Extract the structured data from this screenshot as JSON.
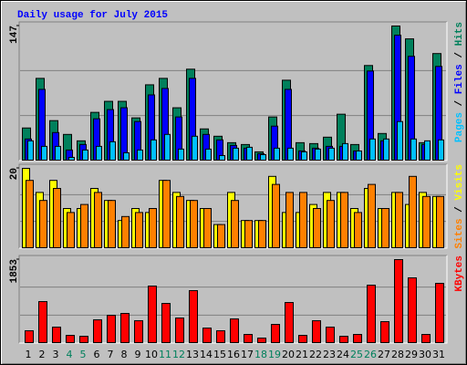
{
  "chart_data": [
    {
      "type": "bar",
      "title": "Daily usage for July 2015",
      "ylim": [
        0,
        147
      ],
      "yticks": [
        147
      ],
      "separator": "/",
      "series": [
        {
          "name": "Hits",
          "color": "#00805c",
          "values": [
            36,
            90,
            44,
            29,
            22,
            53,
            65,
            65,
            47,
            83,
            90,
            58,
            100,
            35,
            27,
            20,
            18,
            10,
            48,
            88,
            20,
            19,
            26,
            51,
            18,
            104,
            30,
            147,
            133,
            20,
            117
          ]
        },
        {
          "name": "Files",
          "color": "#0000ff",
          "values": [
            24,
            78,
            31,
            12,
            18,
            46,
            56,
            58,
            43,
            72,
            79,
            48,
            90,
            29,
            23,
            17,
            14,
            8,
            38,
            78,
            11,
            14,
            16,
            16,
            11,
            98,
            22,
            137,
            114,
            18,
            103
          ]
        },
        {
          "name": "Pages",
          "color": "#00c0ff",
          "values": [
            22,
            16,
            16,
            4,
            12,
            16,
            21,
            9,
            12,
            23,
            29,
            13,
            27,
            13,
            6,
            14,
            15,
            7,
            14,
            14,
            10,
            13,
            14,
            19,
            11,
            24,
            24,
            43,
            24,
            22,
            23
          ]
        }
      ]
    },
    {
      "type": "bar",
      "ylim": [
        0,
        20
      ],
      "yticks": [
        20
      ],
      "separator": "/",
      "series": [
        {
          "name": "Visits",
          "color": "#ffff00",
          "values": [
            20,
            14,
            17,
            10,
            10,
            15,
            12,
            7,
            10,
            9,
            17,
            14,
            12,
            10,
            6,
            14,
            7,
            7,
            18,
            9,
            9,
            11,
            14,
            14,
            10,
            15,
            10,
            14,
            11,
            14,
            13
          ]
        },
        {
          "name": "Sites",
          "color": "#ff8000",
          "values": [
            17,
            12,
            15,
            9,
            11,
            14,
            12,
            8,
            9,
            10,
            17,
            13,
            12,
            10,
            6,
            12,
            7,
            7,
            16,
            14,
            14,
            10,
            12,
            14,
            9,
            16,
            10,
            14,
            18,
            13,
            13
          ]
        }
      ]
    },
    {
      "type": "bar",
      "ylim": [
        0,
        1853
      ],
      "yticks": [
        1853
      ],
      "categories": [
        "1",
        "2",
        "3",
        "4",
        "5",
        "6",
        "7",
        "8",
        "9",
        "10",
        "11",
        "12",
        "13",
        "14",
        "15",
        "16",
        "17",
        "18",
        "19",
        "20",
        "21",
        "22",
        "23",
        "24",
        "25",
        "26",
        "27",
        "28",
        "29",
        "30",
        "31"
      ],
      "category_colors": [
        "#000000",
        "#000000",
        "#000000",
        "#00805c",
        "#00805c",
        "#000000",
        "#000000",
        "#000000",
        "#000000",
        "#000000",
        "#00805c",
        "#00805c",
        "#000000",
        "#000000",
        "#000000",
        "#000000",
        "#000000",
        "#00805c",
        "#00805c",
        "#000000",
        "#000000",
        "#000000",
        "#000000",
        "#000000",
        "#00805c",
        "#00805c",
        "#000000",
        "#000000",
        "#000000",
        "#000000",
        "#000000"
      ],
      "series": [
        {
          "name": "KBytes",
          "color": "#ff0000",
          "values": [
            282,
            926,
            363,
            181,
            161,
            524,
            624,
            665,
            504,
            1269,
            886,
            564,
            1168,
            342,
            282,
            544,
            201,
            121,
            423,
            906,
            181,
            504,
            363,
            161,
            201,
            1289,
            483,
            1853,
            1450,
            201,
            1329
          ]
        }
      ]
    }
  ]
}
